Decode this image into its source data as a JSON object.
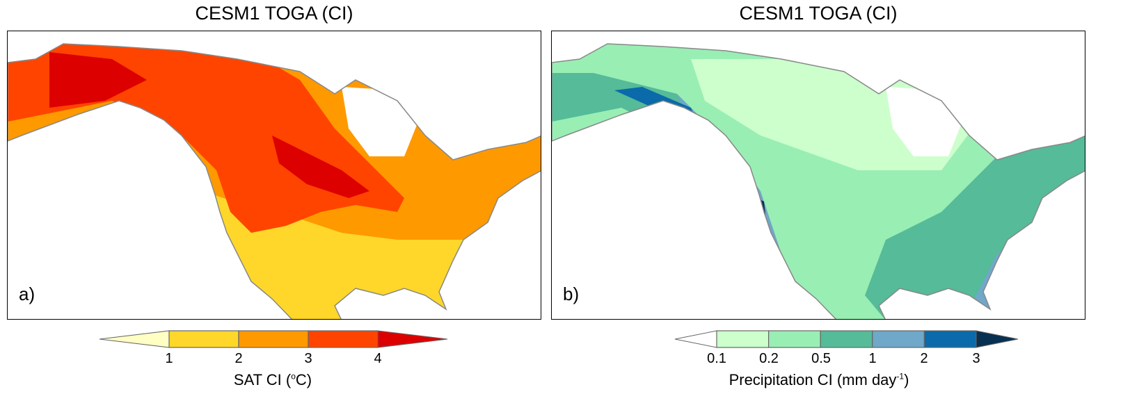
{
  "panels": [
    {
      "title": "CESM1 TOGA (CI)",
      "label": "a)",
      "variable": "SAT CI",
      "unit_base": "C",
      "unit_sup": "o",
      "colorbar": {
        "ticks": [
          "1",
          "2",
          "3",
          "4"
        ],
        "colors": [
          "#ffffc4",
          "#ffd72a",
          "#ff9900",
          "#ff4400",
          "#dd0000"
        ],
        "label_prefix": "SAT CI (",
        "label_suffix": ")"
      }
    },
    {
      "title": "CESM1 TOGA (CI)",
      "label": "b)",
      "variable": "Precipitation CI",
      "colorbar": {
        "ticks": [
          "0.1",
          "0.2",
          "0.5",
          "1",
          "2",
          "3"
        ],
        "colors": [
          "#ffffff",
          "#ccffcc",
          "#99eeb4",
          "#55bb99",
          "#6fa8c8",
          "#0a6aaa",
          "#083050"
        ],
        "label_prefix": "Precipitation CI (mm day",
        "label_sup": "-1",
        "label_suffix": ")"
      }
    }
  ]
}
